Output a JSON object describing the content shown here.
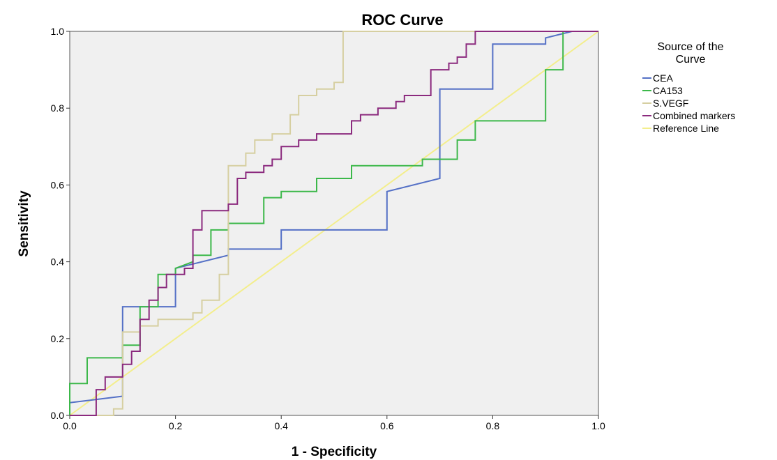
{
  "chart_data": {
    "type": "line",
    "title": "ROC Curve",
    "xlabel": "1 - Specificity",
    "ylabel": "Sensitivity",
    "xlim": [
      0,
      1
    ],
    "ylim": [
      0,
      1
    ],
    "xticks": [
      "0.0",
      "0.2",
      "0.4",
      "0.6",
      "0.8",
      "1.0"
    ],
    "yticks": [
      "0.0",
      "0.2",
      "0.4",
      "0.6",
      "0.8",
      "1.0"
    ],
    "grid": false,
    "legend_placement": "right",
    "legend_title": [
      "Source of the",
      "Curve"
    ],
    "background": "#f0f0f0",
    "series": [
      {
        "name": "CEA",
        "color": "#5470c6",
        "points": [
          [
            0,
            0
          ],
          [
            0,
            0.033
          ],
          [
            0.1,
            0.05
          ],
          [
            0.1,
            0.283
          ],
          [
            0.2,
            0.283
          ],
          [
            0.2,
            0.383
          ],
          [
            0.3,
            0.417
          ],
          [
            0.3,
            0.433
          ],
          [
            0.4,
            0.433
          ],
          [
            0.4,
            0.483
          ],
          [
            0.6,
            0.483
          ],
          [
            0.6,
            0.583
          ],
          [
            0.7,
            0.617
          ],
          [
            0.7,
            0.85
          ],
          [
            0.8,
            0.85
          ],
          [
            0.8,
            0.967
          ],
          [
            0.9,
            0.967
          ],
          [
            0.9,
            0.983
          ],
          [
            0.95,
            1
          ],
          [
            1,
            1
          ]
        ]
      },
      {
        "name": "CA153",
        "color": "#3cb84a",
        "points": [
          [
            0,
            0
          ],
          [
            0,
            0.083
          ],
          [
            0.033,
            0.083
          ],
          [
            0.033,
            0.15
          ],
          [
            0.1,
            0.15
          ],
          [
            0.1,
            0.183
          ],
          [
            0.133,
            0.183
          ],
          [
            0.133,
            0.283
          ],
          [
            0.167,
            0.283
          ],
          [
            0.167,
            0.367
          ],
          [
            0.2,
            0.367
          ],
          [
            0.2,
            0.383
          ],
          [
            0.233,
            0.4
          ],
          [
            0.233,
            0.417
          ],
          [
            0.267,
            0.417
          ],
          [
            0.267,
            0.483
          ],
          [
            0.3,
            0.483
          ],
          [
            0.3,
            0.5
          ],
          [
            0.367,
            0.5
          ],
          [
            0.367,
            0.567
          ],
          [
            0.4,
            0.567
          ],
          [
            0.4,
            0.583
          ],
          [
            0.467,
            0.583
          ],
          [
            0.467,
            0.617
          ],
          [
            0.533,
            0.617
          ],
          [
            0.533,
            0.65
          ],
          [
            0.667,
            0.65
          ],
          [
            0.667,
            0.667
          ],
          [
            0.733,
            0.667
          ],
          [
            0.733,
            0.717
          ],
          [
            0.767,
            0.717
          ],
          [
            0.767,
            0.767
          ],
          [
            0.9,
            0.767
          ],
          [
            0.9,
            0.9
          ],
          [
            0.933,
            0.9
          ],
          [
            0.933,
            1
          ],
          [
            1,
            1
          ]
        ]
      },
      {
        "name": "S.VEGF",
        "color": "#d6cfa1",
        "points": [
          [
            0,
            0
          ],
          [
            0.083,
            0
          ],
          [
            0.083,
            0.017
          ],
          [
            0.1,
            0.017
          ],
          [
            0.1,
            0.217
          ],
          [
            0.133,
            0.217
          ],
          [
            0.133,
            0.233
          ],
          [
            0.167,
            0.233
          ],
          [
            0.167,
            0.25
          ],
          [
            0.2,
            0.25
          ],
          [
            0.233,
            0.25
          ],
          [
            0.233,
            0.267
          ],
          [
            0.25,
            0.267
          ],
          [
            0.25,
            0.3
          ],
          [
            0.283,
            0.3
          ],
          [
            0.283,
            0.367
          ],
          [
            0.3,
            0.367
          ],
          [
            0.3,
            0.65
          ],
          [
            0.333,
            0.65
          ],
          [
            0.333,
            0.683
          ],
          [
            0.35,
            0.683
          ],
          [
            0.35,
            0.717
          ],
          [
            0.383,
            0.717
          ],
          [
            0.383,
            0.733
          ],
          [
            0.417,
            0.733
          ],
          [
            0.417,
            0.783
          ],
          [
            0.433,
            0.783
          ],
          [
            0.433,
            0.833
          ],
          [
            0.467,
            0.833
          ],
          [
            0.467,
            0.85
          ],
          [
            0.5,
            0.85
          ],
          [
            0.5,
            0.867
          ],
          [
            0.517,
            0.867
          ],
          [
            0.517,
            1
          ],
          [
            1,
            1
          ]
        ]
      },
      {
        "name": "Combined markers",
        "color": "#8b2a7e",
        "points": [
          [
            0,
            0
          ],
          [
            0.05,
            0
          ],
          [
            0.05,
            0.067
          ],
          [
            0.067,
            0.067
          ],
          [
            0.067,
            0.1
          ],
          [
            0.1,
            0.1
          ],
          [
            0.1,
            0.133
          ],
          [
            0.117,
            0.133
          ],
          [
            0.117,
            0.167
          ],
          [
            0.133,
            0.167
          ],
          [
            0.133,
            0.25
          ],
          [
            0.15,
            0.25
          ],
          [
            0.15,
            0.3
          ],
          [
            0.167,
            0.3
          ],
          [
            0.167,
            0.333
          ],
          [
            0.183,
            0.333
          ],
          [
            0.183,
            0.367
          ],
          [
            0.2,
            0.367
          ],
          [
            0.217,
            0.367
          ],
          [
            0.217,
            0.383
          ],
          [
            0.233,
            0.383
          ],
          [
            0.233,
            0.483
          ],
          [
            0.25,
            0.483
          ],
          [
            0.25,
            0.533
          ],
          [
            0.3,
            0.533
          ],
          [
            0.3,
            0.55
          ],
          [
            0.317,
            0.55
          ],
          [
            0.317,
            0.617
          ],
          [
            0.333,
            0.617
          ],
          [
            0.333,
            0.633
          ],
          [
            0.367,
            0.633
          ],
          [
            0.367,
            0.65
          ],
          [
            0.383,
            0.65
          ],
          [
            0.383,
            0.667
          ],
          [
            0.4,
            0.667
          ],
          [
            0.4,
            0.7
          ],
          [
            0.417,
            0.7
          ],
          [
            0.433,
            0.7
          ],
          [
            0.433,
            0.717
          ],
          [
            0.467,
            0.717
          ],
          [
            0.467,
            0.733
          ],
          [
            0.533,
            0.733
          ],
          [
            0.533,
            0.767
          ],
          [
            0.55,
            0.767
          ],
          [
            0.55,
            0.783
          ],
          [
            0.583,
            0.783
          ],
          [
            0.583,
            0.8
          ],
          [
            0.617,
            0.8
          ],
          [
            0.617,
            0.817
          ],
          [
            0.633,
            0.817
          ],
          [
            0.633,
            0.833
          ],
          [
            0.683,
            0.833
          ],
          [
            0.683,
            0.9
          ],
          [
            0.717,
            0.9
          ],
          [
            0.717,
            0.917
          ],
          [
            0.733,
            0.917
          ],
          [
            0.733,
            0.933
          ],
          [
            0.75,
            0.933
          ],
          [
            0.75,
            0.967
          ],
          [
            0.767,
            0.967
          ],
          [
            0.767,
            1
          ],
          [
            1,
            1
          ]
        ]
      },
      {
        "name": "Reference Line",
        "color": "#f3ee8c",
        "points": [
          [
            0,
            0
          ],
          [
            1,
            1
          ]
        ]
      }
    ]
  }
}
